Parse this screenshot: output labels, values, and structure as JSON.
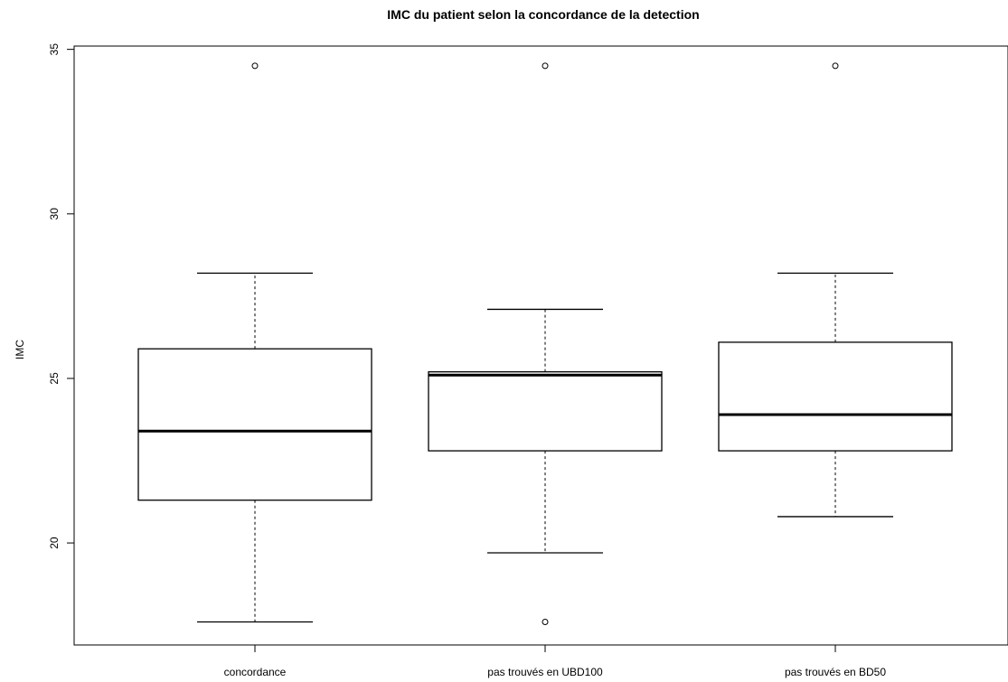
{
  "chart_data": {
    "type": "box",
    "title": "IMC du patient selon la concordance de la detection",
    "xlabel": "",
    "ylabel": "IMC",
    "ylim": [
      16.9,
      35.1
    ],
    "yticks": [
      "20",
      "25",
      "30",
      "35"
    ],
    "grid": false,
    "categories": [
      "concordance",
      "pas trouvés en UBD100",
      "pas trouvés en BD50"
    ],
    "boxes": [
      {
        "min": 17.6,
        "q1": 21.3,
        "median": 23.4,
        "q3": 25.9,
        "max": 28.2,
        "outliers": [
          34.5
        ]
      },
      {
        "min": 19.7,
        "q1": 22.8,
        "median": 25.1,
        "q3": 25.2,
        "max": 27.1,
        "outliers": [
          34.5,
          17.6
        ]
      },
      {
        "min": 20.8,
        "q1": 22.8,
        "median": 23.9,
        "q3": 26.1,
        "max": 28.2,
        "outliers": [
          34.5
        ]
      }
    ]
  }
}
